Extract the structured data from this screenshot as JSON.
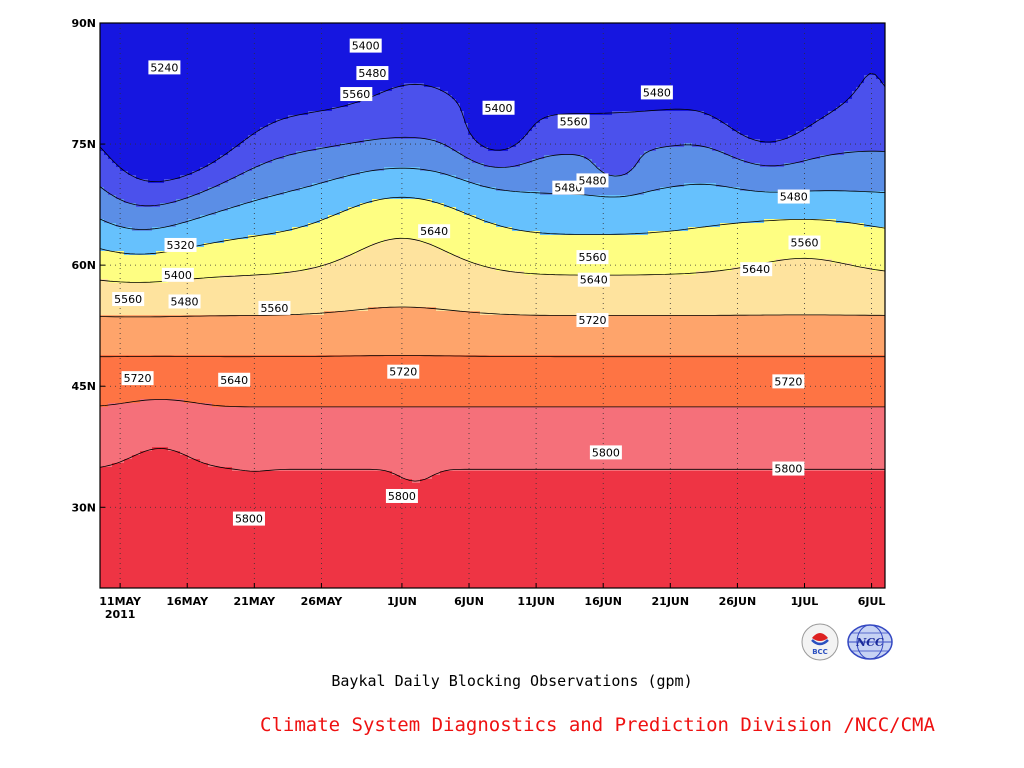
{
  "chart_data": {
    "type": "heatmap",
    "title": "Baykal Daily Blocking Observations (gpm)",
    "x_ticks": [
      {
        "label": "11MAY",
        "sublabel": "2011",
        "day": 0
      },
      {
        "label": "16MAY",
        "day": 5
      },
      {
        "label": "21MAY",
        "day": 10
      },
      {
        "label": "26MAY",
        "day": 15
      },
      {
        "label": "1JUN",
        "day": 21
      },
      {
        "label": "6JUN",
        "day": 26
      },
      {
        "label": "11JUN",
        "day": 31
      },
      {
        "label": "16JUN",
        "day": 36
      },
      {
        "label": "21JUN",
        "day": 41
      },
      {
        "label": "26JUN",
        "day": 46
      },
      {
        "label": "1JUL",
        "day": 51
      },
      {
        "label": "6JUL",
        "day": 56
      }
    ],
    "y_ticks": [
      {
        "label": "30N",
        "lat": 30
      },
      {
        "label": "45N",
        "lat": 45
      },
      {
        "label": "60N",
        "lat": 60
      },
      {
        "label": "75N",
        "lat": 75
      },
      {
        "label": "90N",
        "lat": 90
      }
    ],
    "x_range": [
      -1.5,
      57
    ],
    "y_range": [
      20,
      90
    ],
    "grid": true,
    "levels": [
      5240,
      5320,
      5400,
      5480,
      5560,
      5640,
      5720,
      5800,
      5880
    ],
    "contour_labels": [
      {
        "text": "5240",
        "day": 3.3,
        "lat": 84.5
      },
      {
        "text": "5320",
        "day": 4.5,
        "lat": 62.5
      },
      {
        "text": "5400",
        "day": 4.3,
        "lat": 58.8
      },
      {
        "text": "5480",
        "day": 4.8,
        "lat": 55.5
      },
      {
        "text": "5560",
        "day": 0.6,
        "lat": 55.8
      },
      {
        "text": "5720",
        "day": 1.3,
        "lat": 46.0
      },
      {
        "text": "5640",
        "day": 8.5,
        "lat": 45.8
      },
      {
        "text": "5560",
        "day": 11.5,
        "lat": 54.7
      },
      {
        "text": "5800",
        "day": 9.6,
        "lat": 28.6
      },
      {
        "text": "5400",
        "day": 18.3,
        "lat": 87.2
      },
      {
        "text": "5480",
        "day": 18.8,
        "lat": 83.8
      },
      {
        "text": "5560",
        "day": 17.6,
        "lat": 81.2
      },
      {
        "text": "5720",
        "day": 21.1,
        "lat": 46.8
      },
      {
        "text": "5800",
        "day": 21.0,
        "lat": 31.4
      },
      {
        "text": "5640",
        "day": 23.4,
        "lat": 64.2
      },
      {
        "text": "5400",
        "day": 28.2,
        "lat": 79.5
      },
      {
        "text": "5560",
        "day": 33.8,
        "lat": 77.8
      },
      {
        "text": "5480",
        "day": 33.4,
        "lat": 69.6
      },
      {
        "text": "5480",
        "day": 35.2,
        "lat": 70.5
      },
      {
        "text": "5560",
        "day": 35.2,
        "lat": 61.0
      },
      {
        "text": "5640",
        "day": 35.3,
        "lat": 58.2
      },
      {
        "text": "5720",
        "day": 35.2,
        "lat": 53.2
      },
      {
        "text": "5800",
        "day": 36.2,
        "lat": 36.8
      },
      {
        "text": "5480",
        "day": 40.0,
        "lat": 81.4
      },
      {
        "text": "5640",
        "day": 47.4,
        "lat": 59.5
      },
      {
        "text": "5480",
        "day": 50.2,
        "lat": 68.5
      },
      {
        "text": "5560",
        "day": 51.0,
        "lat": 62.8
      },
      {
        "text": "5720",
        "day": 49.8,
        "lat": 45.6
      },
      {
        "text": "5800",
        "day": 49.8,
        "lat": 34.8
      }
    ]
  },
  "colors": {
    "band_lt_5240": "#1616e0",
    "band_5240_5320": "#4b51ec",
    "band_5320_5400": "#5b8ee6",
    "band_5400_5480": "#66c1fd",
    "band_5480_5560": "#fefe82",
    "band_5560_5640": "#fee39e",
    "band_5640_5720": "#fea46b",
    "band_5720_5800": "#fe7444",
    "band_5800_5880": "#f5707a",
    "band_gt_5880": "#ee3444",
    "credit_text": "#ee1111"
  },
  "caption": {
    "title": "Baykal Daily Blocking Observations (gpm)",
    "credit": "Climate System Diagnostics and Prediction Division /NCC/CMA"
  },
  "logos": {
    "left": "BCC",
    "right": "NCC"
  }
}
